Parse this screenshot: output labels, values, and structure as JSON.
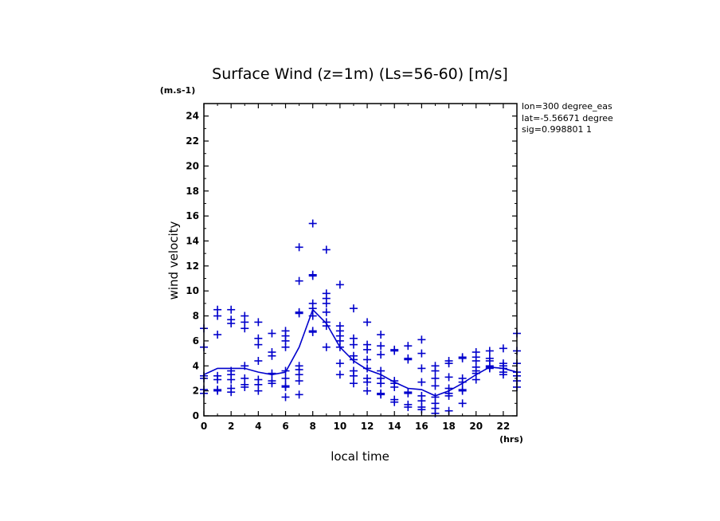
{
  "chart_data": {
    "type": "scatter",
    "title": "Surface Wind (z=1m) (Ls=56-60) [m/s]",
    "y_unit": "(m.s-1)",
    "x_unit": "(hrs)",
    "xlabel": "local time",
    "ylabel": "wind velocity",
    "info_lines": [
      "lon=300 degree_eas",
      "lat=-5.56671 degree",
      "sig=0.998801 1"
    ],
    "xlim": [
      0,
      23
    ],
    "ylim": [
      0,
      25
    ],
    "x_ticks": [
      0,
      2,
      4,
      6,
      8,
      10,
      12,
      14,
      16,
      18,
      20,
      22
    ],
    "y_ticks": [
      0,
      2,
      4,
      6,
      8,
      10,
      12,
      14,
      16,
      18,
      20,
      22,
      24
    ],
    "color": "#0000cc",
    "grid": false,
    "series": [
      {
        "kind": "points",
        "points": [
          [
            0,
            1.8
          ],
          [
            0,
            2.1
          ],
          [
            0,
            3.0
          ],
          [
            0,
            3.2
          ],
          [
            0,
            5.5
          ],
          [
            0,
            7.0
          ],
          [
            1,
            2.0
          ],
          [
            1,
            2.1
          ],
          [
            1,
            2.9
          ],
          [
            1,
            3.2
          ],
          [
            1,
            6.5
          ],
          [
            1,
            8.0
          ],
          [
            1,
            8.5
          ],
          [
            2,
            1.9
          ],
          [
            2,
            2.2
          ],
          [
            2,
            2.9
          ],
          [
            2,
            3.3
          ],
          [
            2,
            3.6
          ],
          [
            2,
            7.4
          ],
          [
            2,
            7.7
          ],
          [
            2,
            8.5
          ],
          [
            3,
            2.3
          ],
          [
            3,
            2.5
          ],
          [
            3,
            3.0
          ],
          [
            3,
            4.0
          ],
          [
            3,
            7.0
          ],
          [
            3,
            7.5
          ],
          [
            3,
            8.0
          ],
          [
            4,
            2.0
          ],
          [
            4,
            2.5
          ],
          [
            4,
            2.9
          ],
          [
            4,
            4.4
          ],
          [
            4,
            5.7
          ],
          [
            4,
            6.2
          ],
          [
            4,
            7.5
          ],
          [
            5,
            2.6
          ],
          [
            5,
            2.8
          ],
          [
            5,
            3.4
          ],
          [
            5,
            4.8
          ],
          [
            5,
            5.1
          ],
          [
            5,
            6.6
          ],
          [
            6,
            1.5
          ],
          [
            6,
            2.3
          ],
          [
            6,
            2.4
          ],
          [
            6,
            3.0
          ],
          [
            6,
            3.6
          ],
          [
            6,
            5.5
          ],
          [
            6,
            6.0
          ],
          [
            6,
            6.4
          ],
          [
            6,
            6.8
          ],
          [
            7,
            1.7
          ],
          [
            7,
            2.8
          ],
          [
            7,
            3.3
          ],
          [
            7,
            3.7
          ],
          [
            7,
            4.0
          ],
          [
            7,
            8.2
          ],
          [
            7,
            8.3
          ],
          [
            7,
            10.8
          ],
          [
            7,
            13.5
          ],
          [
            8,
            6.7
          ],
          [
            8,
            6.8
          ],
          [
            8,
            8.0
          ],
          [
            8,
            8.6
          ],
          [
            8,
            9.0
          ],
          [
            8,
            11.2
          ],
          [
            8,
            11.3
          ],
          [
            8,
            15.4
          ],
          [
            9,
            5.5
          ],
          [
            9,
            7.2
          ],
          [
            9,
            7.5
          ],
          [
            9,
            8.3
          ],
          [
            9,
            9.0
          ],
          [
            9,
            9.4
          ],
          [
            9,
            9.8
          ],
          [
            9,
            13.3
          ],
          [
            10,
            3.3
          ],
          [
            10,
            4.2
          ],
          [
            10,
            5.5
          ],
          [
            10,
            6.0
          ],
          [
            10,
            6.4
          ],
          [
            10,
            6.8
          ],
          [
            10,
            7.2
          ],
          [
            10,
            10.5
          ],
          [
            11,
            2.6
          ],
          [
            11,
            3.2
          ],
          [
            11,
            3.6
          ],
          [
            11,
            4.5
          ],
          [
            11,
            4.8
          ],
          [
            11,
            5.7
          ],
          [
            11,
            6.2
          ],
          [
            11,
            8.6
          ],
          [
            12,
            2.0
          ],
          [
            12,
            2.7
          ],
          [
            12,
            3.0
          ],
          [
            12,
            3.8
          ],
          [
            12,
            4.5
          ],
          [
            12,
            5.3
          ],
          [
            12,
            5.7
          ],
          [
            12,
            7.5
          ],
          [
            13,
            1.7
          ],
          [
            13,
            1.8
          ],
          [
            13,
            2.6
          ],
          [
            13,
            3.0
          ],
          [
            13,
            3.6
          ],
          [
            13,
            4.9
          ],
          [
            13,
            5.6
          ],
          [
            13,
            6.5
          ],
          [
            14,
            1.1
          ],
          [
            14,
            1.3
          ],
          [
            14,
            2.3
          ],
          [
            14,
            2.6
          ],
          [
            14,
            2.8
          ],
          [
            14,
            5.2
          ],
          [
            14,
            5.3
          ],
          [
            15,
            0.7
          ],
          [
            15,
            0.9
          ],
          [
            15,
            1.8
          ],
          [
            15,
            1.9
          ],
          [
            15,
            4.5
          ],
          [
            15,
            4.6
          ],
          [
            15,
            5.6
          ],
          [
            16,
            0.5
          ],
          [
            16,
            0.7
          ],
          [
            16,
            1.2
          ],
          [
            16,
            1.6
          ],
          [
            16,
            2.7
          ],
          [
            16,
            3.8
          ],
          [
            16,
            5.0
          ],
          [
            16,
            6.1
          ],
          [
            17,
            0.2
          ],
          [
            17,
            0.6
          ],
          [
            17,
            1.0
          ],
          [
            17,
            1.5
          ],
          [
            17,
            2.4
          ],
          [
            17,
            3.0
          ],
          [
            17,
            3.6
          ],
          [
            17,
            4.0
          ],
          [
            18,
            0.4
          ],
          [
            18,
            1.6
          ],
          [
            18,
            1.8
          ],
          [
            18,
            2.2
          ],
          [
            18,
            3.1
          ],
          [
            18,
            4.2
          ],
          [
            18,
            4.4
          ],
          [
            19,
            1.0
          ],
          [
            19,
            2.0
          ],
          [
            19,
            2.1
          ],
          [
            19,
            2.7
          ],
          [
            19,
            3.0
          ],
          [
            19,
            4.6
          ],
          [
            19,
            4.7
          ],
          [
            20,
            2.9
          ],
          [
            20,
            3.4
          ],
          [
            20,
            3.6
          ],
          [
            20,
            3.9
          ],
          [
            20,
            4.4
          ],
          [
            20,
            4.7
          ],
          [
            20,
            5.1
          ],
          [
            21,
            3.8
          ],
          [
            21,
            3.9
          ],
          [
            21,
            4.0
          ],
          [
            21,
            4.4
          ],
          [
            21,
            4.6
          ],
          [
            21,
            5.2
          ],
          [
            22,
            3.3
          ],
          [
            22,
            3.5
          ],
          [
            22,
            3.8
          ],
          [
            22,
            4.0
          ],
          [
            22,
            4.2
          ],
          [
            22,
            5.4
          ],
          [
            23,
            2.3
          ],
          [
            23,
            2.8
          ],
          [
            23,
            3.2
          ],
          [
            23,
            3.5
          ],
          [
            23,
            4.2
          ],
          [
            23,
            5.2
          ],
          [
            23,
            6.6
          ]
        ]
      },
      {
        "kind": "line",
        "x": [
          0,
          1,
          2,
          3,
          4,
          5,
          6,
          7,
          8,
          9,
          10,
          11,
          12,
          13,
          14,
          15,
          16,
          17,
          18,
          19,
          20,
          21,
          22,
          23
        ],
        "y": [
          3.3,
          3.8,
          3.8,
          3.8,
          3.5,
          3.3,
          3.5,
          5.5,
          8.5,
          7.4,
          5.5,
          4.4,
          3.7,
          3.3,
          2.7,
          2.2,
          2.1,
          1.6,
          2.0,
          2.6,
          3.3,
          3.9,
          3.8,
          3.5
        ]
      }
    ]
  }
}
